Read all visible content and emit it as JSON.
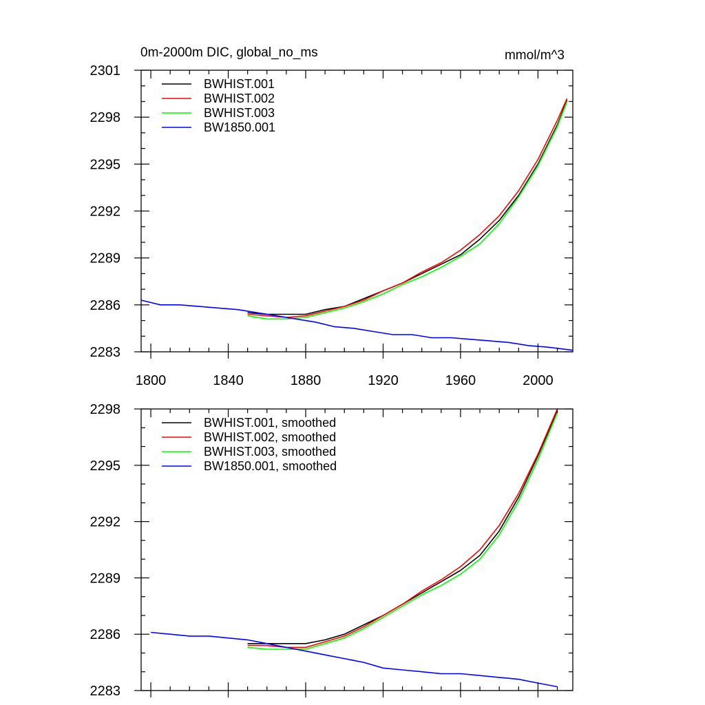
{
  "chart_data": [
    {
      "type": "line",
      "title": "0m-2000m DIC, global_no_ms",
      "units": "mmol/m^3",
      "xlim": [
        1795,
        2018
      ],
      "ylim": [
        2283,
        2301
      ],
      "x_ticks": [
        1800,
        1840,
        1880,
        1920,
        1960,
        2000
      ],
      "x_tick_labels": [
        "1800",
        "1840",
        "1880",
        "1920",
        "1960",
        "2000"
      ],
      "y_ticks": [
        2283,
        2286,
        2289,
        2292,
        2295,
        2298,
        2301
      ],
      "y_tick_labels": [
        "2283",
        "2286",
        "2289",
        "2292",
        "2295",
        "2298",
        "2301"
      ],
      "grid": false,
      "legend_position": "top-left",
      "series": [
        {
          "name": "BWHIST.001",
          "color": "#000000",
          "x": [
            1850,
            1860,
            1870,
            1880,
            1890,
            1900,
            1910,
            1920,
            1930,
            1940,
            1950,
            1960,
            1970,
            1980,
            1990,
            2000,
            2010,
            2015
          ],
          "y": [
            2285.5,
            2285.4,
            2285.4,
            2285.4,
            2285.7,
            2285.9,
            2286.4,
            2286.9,
            2287.4,
            2288.0,
            2288.6,
            2289.2,
            2290.2,
            2291.4,
            2293.0,
            2295.0,
            2297.5,
            2299.1
          ]
        },
        {
          "name": "BWHIST.002",
          "color": "#ff0000",
          "x": [
            1850,
            1860,
            1870,
            1880,
            1890,
            1900,
            1910,
            1920,
            1930,
            1940,
            1950,
            1960,
            1970,
            1980,
            1990,
            2000,
            2010,
            2015
          ],
          "y": [
            2285.4,
            2285.3,
            2285.2,
            2285.3,
            2285.6,
            2285.9,
            2286.3,
            2286.9,
            2287.4,
            2288.1,
            2288.7,
            2289.5,
            2290.5,
            2291.7,
            2293.3,
            2295.3,
            2297.8,
            2299.2
          ]
        },
        {
          "name": "BWHIST.003",
          "color": "#00ff00",
          "x": [
            1850,
            1860,
            1870,
            1880,
            1890,
            1900,
            1910,
            1920,
            1930,
            1940,
            1950,
            1960,
            1970,
            1980,
            1990,
            2000,
            2010,
            2015
          ],
          "y": [
            2285.3,
            2285.1,
            2285.1,
            2285.2,
            2285.5,
            2285.8,
            2286.2,
            2286.7,
            2287.3,
            2287.8,
            2288.4,
            2289.1,
            2289.9,
            2291.2,
            2292.9,
            2294.9,
            2297.4,
            2299.0
          ]
        },
        {
          "name": "BW1850.001",
          "color": "#0000ff",
          "x": [
            1795,
            1805,
            1815,
            1825,
            1835,
            1845,
            1855,
            1865,
            1875,
            1885,
            1895,
            1905,
            1915,
            1925,
            1935,
            1945,
            1955,
            1965,
            1975,
            1985,
            1995,
            2005,
            2018
          ],
          "y": [
            2286.3,
            2286.0,
            2286.0,
            2285.9,
            2285.8,
            2285.7,
            2285.5,
            2285.3,
            2285.1,
            2284.9,
            2284.6,
            2284.5,
            2284.3,
            2284.1,
            2284.1,
            2283.9,
            2283.9,
            2283.8,
            2283.7,
            2283.6,
            2283.4,
            2283.3,
            2283.1
          ]
        }
      ]
    },
    {
      "type": "line",
      "xlim": [
        1795,
        2018
      ],
      "ylim": [
        2283,
        2298
      ],
      "x_ticks": [
        1800,
        1840,
        1880,
        1920,
        1960,
        2000
      ],
      "y_ticks": [
        2283,
        2286,
        2289,
        2292,
        2295,
        2298
      ],
      "y_tick_labels": [
        "2283",
        "2286",
        "2289",
        "2292",
        "2295",
        "2298"
      ],
      "grid": false,
      "legend_position": "top-left",
      "series": [
        {
          "name": "BWHIST.001, smoothed",
          "color": "#000000",
          "x": [
            1850,
            1860,
            1870,
            1880,
            1890,
            1900,
            1910,
            1920,
            1930,
            1940,
            1950,
            1960,
            1970,
            1980,
            1990,
            2000,
            2010
          ],
          "y": [
            2285.5,
            2285.5,
            2285.5,
            2285.5,
            2285.7,
            2286.0,
            2286.5,
            2287.0,
            2287.6,
            2288.2,
            2288.8,
            2289.4,
            2290.2,
            2291.5,
            2293.3,
            2295.5,
            2297.9
          ]
        },
        {
          "name": "BWHIST.002, smoothed",
          "color": "#ff0000",
          "x": [
            1850,
            1860,
            1870,
            1880,
            1890,
            1900,
            1910,
            1920,
            1930,
            1940,
            1950,
            1960,
            1970,
            1980,
            1990,
            2000,
            2010
          ],
          "y": [
            2285.4,
            2285.4,
            2285.3,
            2285.3,
            2285.6,
            2285.9,
            2286.4,
            2287.0,
            2287.6,
            2288.3,
            2288.9,
            2289.6,
            2290.5,
            2291.8,
            2293.5,
            2295.6,
            2298.0
          ]
        },
        {
          "name": "BWHIST.003, smoothed",
          "color": "#00ff00",
          "x": [
            1850,
            1860,
            1870,
            1880,
            1890,
            1900,
            1910,
            1920,
            1930,
            1940,
            1950,
            1960,
            1970,
            1980,
            1990,
            2000,
            2010
          ],
          "y": [
            2285.3,
            2285.2,
            2285.2,
            2285.2,
            2285.5,
            2285.8,
            2286.3,
            2286.9,
            2287.5,
            2288.1,
            2288.6,
            2289.2,
            2290.0,
            2291.3,
            2293.1,
            2295.3,
            2297.8
          ]
        },
        {
          "name": "BW1850.001, smoothed",
          "color": "#0000ff",
          "x": [
            1800,
            1810,
            1820,
            1830,
            1840,
            1850,
            1860,
            1870,
            1880,
            1890,
            1900,
            1910,
            1920,
            1930,
            1940,
            1950,
            1960,
            1970,
            1980,
            1990,
            2000,
            2010
          ],
          "y": [
            2286.1,
            2286.0,
            2285.9,
            2285.9,
            2285.8,
            2285.7,
            2285.5,
            2285.3,
            2285.1,
            2284.9,
            2284.7,
            2284.5,
            2284.2,
            2284.1,
            2284.0,
            2283.9,
            2283.9,
            2283.8,
            2283.7,
            2283.6,
            2283.4,
            2283.2
          ]
        }
      ]
    }
  ]
}
